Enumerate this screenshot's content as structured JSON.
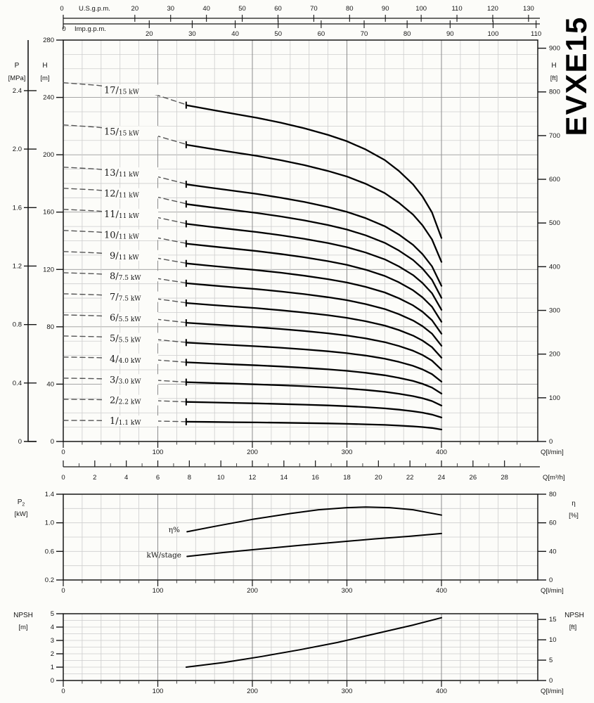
{
  "model": "EVXE15",
  "chart_data": [
    {
      "id": "head_flow",
      "type": "line",
      "title": "Head vs flow, multistage pump EVXE15 (1-17 stages)",
      "x_unit_label": "Q[l/min]",
      "x_ticks": [
        0,
        100,
        200,
        300,
        400
      ],
      "x_minor_step": 20,
      "x_max_lmin": 502,
      "y_left_h": {
        "title": "H",
        "unit": "[m]",
        "ticks": [
          280,
          240,
          200,
          160,
          120,
          80,
          40,
          0
        ],
        "minor_step": 10,
        "max": 280
      },
      "y_left_p": {
        "title": "P",
        "unit": "[MPa]",
        "ticks": [
          "2.4",
          "2.0",
          "1.6",
          "1.2",
          "0.8",
          "0.4",
          "0"
        ]
      },
      "y_right_ft": {
        "title": "H",
        "unit": "[ft]",
        "ticks": [
          900,
          800,
          700,
          600,
          500,
          400,
          300,
          200,
          100,
          0
        ]
      },
      "top_axis_us": {
        "label": "U.S.g.p.m.",
        "zero": "0",
        "ticks": [
          20,
          30,
          40,
          50,
          60,
          70,
          80,
          90,
          100,
          110,
          120,
          130
        ]
      },
      "top_axis_imp": {
        "label": "Imp.g.p.m.",
        "zero": "0",
        "ticks": [
          20,
          30,
          40,
          50,
          60,
          70,
          80,
          90,
          100,
          110
        ]
      },
      "bottom_axis_m3h": {
        "unit": "Q[m³/h]",
        "ticks": [
          0,
          2,
          4,
          6,
          8,
          10,
          12,
          14,
          16,
          18,
          20,
          22,
          24,
          26,
          28
        ],
        "minor_step": 1
      },
      "per_stage_head_dashed_m": [
        [
          0,
          14.72
        ],
        [
          35,
          14.62
        ],
        [
          70,
          14.44
        ],
        [
          100,
          14.2
        ],
        [
          130,
          13.82
        ]
      ],
      "per_stage_head_solid_m": [
        [
          130,
          13.8
        ],
        [
          155,
          13.62
        ],
        [
          180,
          13.45
        ],
        [
          205,
          13.28
        ],
        [
          230,
          13.08
        ],
        [
          255,
          12.85
        ],
        [
          280,
          12.58
        ],
        [
          300,
          12.32
        ],
        [
          320,
          11.98
        ],
        [
          340,
          11.55
        ],
        [
          355,
          11.1
        ],
        [
          370,
          10.55
        ],
        [
          380,
          10.05
        ],
        [
          390,
          9.4
        ],
        [
          400,
          8.35
        ]
      ],
      "series": [
        {
          "stages": 17,
          "power": "15 kW"
        },
        {
          "stages": 15,
          "power": "15 kW"
        },
        {
          "stages": 13,
          "power": "11 kW"
        },
        {
          "stages": 12,
          "power": "11 kW"
        },
        {
          "stages": 11,
          "power": "11 kW"
        },
        {
          "stages": 10,
          "power": "11 kW"
        },
        {
          "stages": 9,
          "power": "11 kW"
        },
        {
          "stages": 8,
          "power": "7.5 kW"
        },
        {
          "stages": 7,
          "power": "7.5 kW"
        },
        {
          "stages": 6,
          "power": "5.5 kW"
        },
        {
          "stages": 5,
          "power": "5.5 kW"
        },
        {
          "stages": 4,
          "power": "4.0 kW"
        },
        {
          "stages": 3,
          "power": "3.0 kW"
        },
        {
          "stages": 2,
          "power": "2.2 kW"
        },
        {
          "stages": 1,
          "power": "1.1 kW"
        }
      ]
    },
    {
      "id": "power_efficiency",
      "type": "line",
      "title": "Power per stage and efficiency vs flow",
      "x_unit_label": "Q[l/min]",
      "x_ticks": [
        0,
        100,
        200,
        300,
        400
      ],
      "x_minor_step": 20,
      "y_left": {
        "title": "P",
        "title_sub": "2",
        "unit": "[kW]",
        "ticks": [
          "1.4",
          "1.0",
          "0.6",
          "0.2"
        ],
        "range": [
          0.2,
          1.4
        ],
        "grid_step": 0.2
      },
      "y_right": {
        "title": "η",
        "unit": "[%]",
        "ticks": [
          "80",
          "60",
          "40",
          "0"
        ]
      },
      "series": [
        {
          "name": "η%",
          "axis": "eta_percent",
          "points": [
            [
              131,
              45
            ],
            [
              160,
              50
            ],
            [
              200,
              56.5
            ],
            [
              240,
              62
            ],
            [
              270,
              65.5
            ],
            [
              300,
              67.5
            ],
            [
              320,
              68
            ],
            [
              345,
              67.5
            ],
            [
              370,
              65.5
            ],
            [
              400,
              60.5
            ]
          ]
        },
        {
          "name": "kW/stage",
          "axis": "kw",
          "points": [
            [
              131,
              0.53
            ],
            [
              170,
              0.585
            ],
            [
              210,
              0.635
            ],
            [
              250,
              0.685
            ],
            [
              290,
              0.73
            ],
            [
              330,
              0.775
            ],
            [
              365,
              0.81
            ],
            [
              400,
              0.85
            ]
          ]
        }
      ]
    },
    {
      "id": "npsh",
      "type": "line",
      "title": "NPSH vs flow",
      "x_unit_label": "Q[l/min]",
      "x_ticks": [
        0,
        100,
        200,
        300,
        400
      ],
      "x_minor_step": 20,
      "y_left": {
        "title": "NPSH",
        "unit": "[m]",
        "ticks": [
          5,
          4,
          3,
          2,
          1,
          0
        ],
        "range": [
          0,
          5
        ],
        "grid_step": 0.5
      },
      "y_right": {
        "title": "NPSH",
        "unit": "[ft]",
        "ticks": [
          15,
          10,
          5,
          0
        ]
      },
      "series": [
        {
          "name": "NPSH",
          "points": [
            [
              130,
              1.0
            ],
            [
              170,
              1.35
            ],
            [
              210,
              1.8
            ],
            [
              250,
              2.3
            ],
            [
              290,
              2.85
            ],
            [
              330,
              3.5
            ],
            [
              370,
              4.15
            ],
            [
              400,
              4.7
            ]
          ]
        }
      ]
    }
  ]
}
